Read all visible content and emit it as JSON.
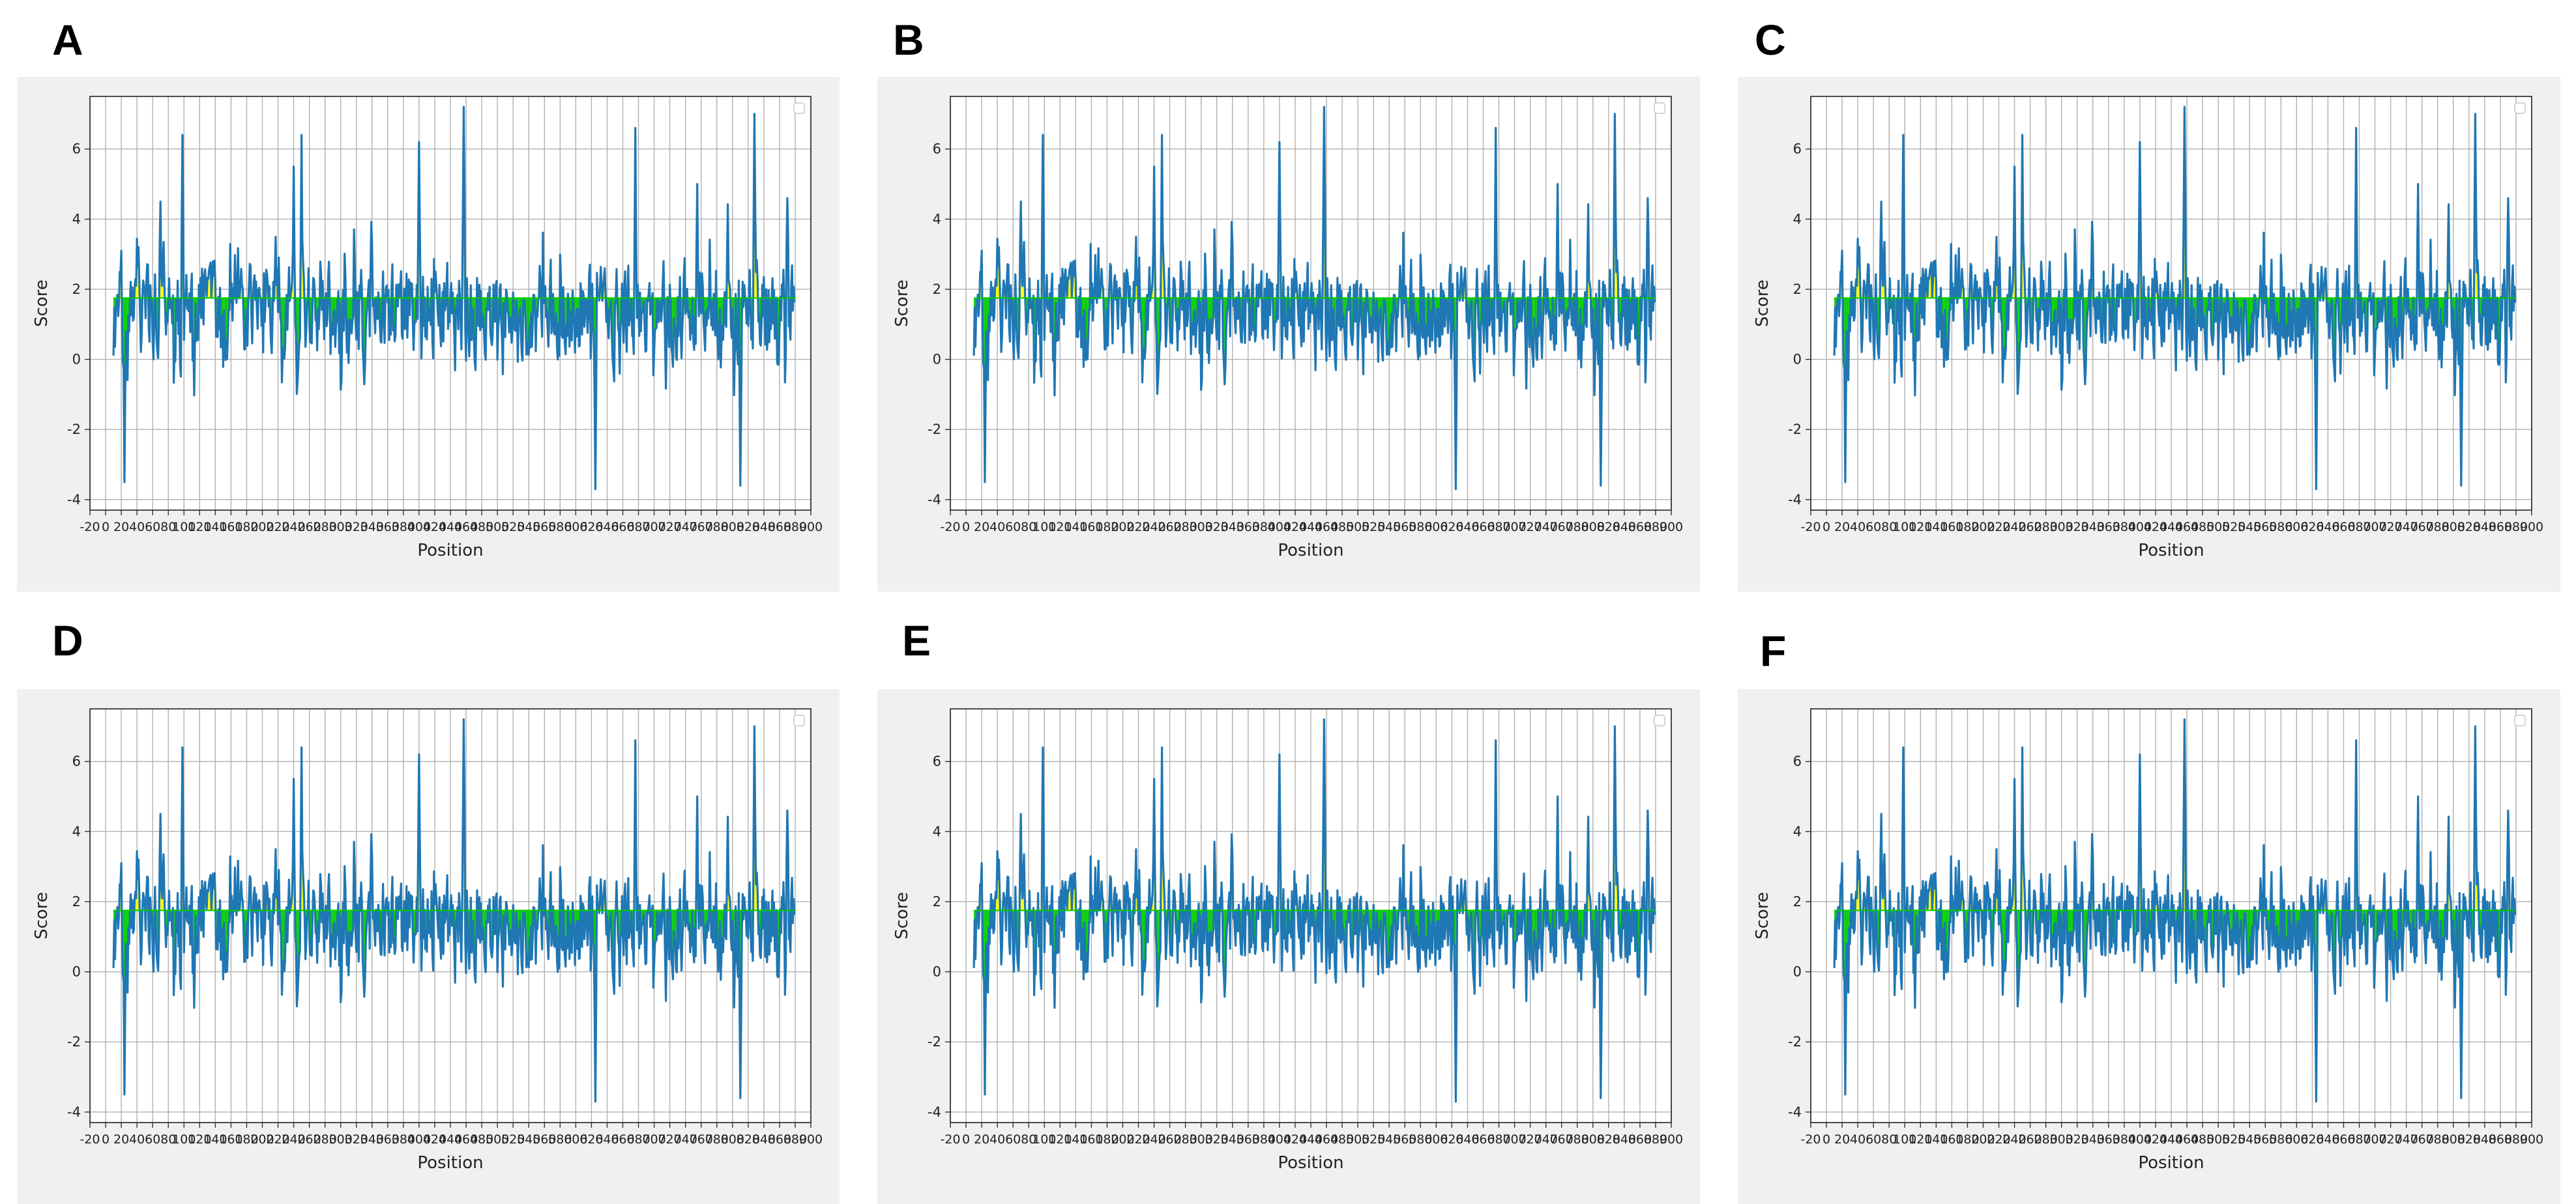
{
  "panels": [
    {
      "letter": "A"
    },
    {
      "letter": "B"
    },
    {
      "letter": "C"
    },
    {
      "letter": "D"
    },
    {
      "letter": "E"
    },
    {
      "letter": "F"
    }
  ],
  "colors": {
    "line": "#1f77b4",
    "above_fill": "#ffff00",
    "below_fill": "#00cc00",
    "grid": "#b0b0b0",
    "panel_bg": "#f0f0f0"
  },
  "chart_data": [
    {
      "type": "line",
      "panel": "A",
      "xlabel": "Position",
      "ylabel": "Score",
      "threshold": 1.75,
      "xlim": [
        -20,
        900
      ],
      "ylim": [
        -4.3,
        7.5
      ],
      "yticks": [
        -4,
        -2,
        0,
        2,
        4,
        6
      ],
      "xtick_labels": [
        "-20",
        "0",
        "20",
        "40",
        "60",
        "80",
        "100",
        "120",
        "140",
        "160",
        "180",
        "200",
        "220",
        "240",
        "260",
        "280",
        "300",
        "320",
        "340",
        "360",
        "380",
        "400",
        "420",
        "440",
        "460",
        "480",
        "500",
        "520",
        "540",
        "560",
        "580",
        "600",
        "620",
        "640",
        "660",
        "680",
        "700",
        "720",
        "740",
        "760",
        "780",
        "800",
        "820",
        "840",
        "860",
        "880",
        "900"
      ],
      "series_seed": 0,
      "series_length": 870,
      "peaks": [
        {
          "x": 14,
          "y": -3.5
        },
        {
          "x": 32,
          "y": 3.2
        },
        {
          "x": 60,
          "y": 4.5
        },
        {
          "x": 88,
          "y": 6.4
        },
        {
          "x": 230,
          "y": 5.5
        },
        {
          "x": 240,
          "y": 6.4
        },
        {
          "x": 390,
          "y": 6.2
        },
        {
          "x": 447,
          "y": 7.2
        },
        {
          "x": 615,
          "y": -3.7
        },
        {
          "x": 666,
          "y": 6.6
        },
        {
          "x": 745,
          "y": 5.0
        },
        {
          "x": 800,
          "y": -3.6
        },
        {
          "x": 818,
          "y": 7.0
        },
        {
          "x": 860,
          "y": 4.6
        }
      ]
    },
    {
      "type": "line",
      "panel": "B",
      "xlabel": "Position",
      "ylabel": "Score",
      "threshold": 1.75,
      "xlim": [
        -20,
        900
      ],
      "ylim": [
        -4.3,
        7.5
      ],
      "yticks": [
        -4,
        -2,
        0,
        2,
        4,
        6
      ],
      "xtick_labels": [
        "-20",
        "0",
        "20",
        "40",
        "60",
        "80",
        "100",
        "120",
        "140",
        "160",
        "180",
        "200",
        "220",
        "240",
        "260",
        "280",
        "300",
        "320",
        "340",
        "360",
        "380",
        "400",
        "420",
        "440",
        "460",
        "480",
        "500",
        "520",
        "540",
        "560",
        "580",
        "600",
        "620",
        "640",
        "660",
        "680",
        "700",
        "720",
        "740",
        "760",
        "780",
        "800",
        "820",
        "840",
        "860",
        "880",
        "900"
      ],
      "series_seed": 0,
      "series_length": 870,
      "peaks": [
        {
          "x": 14,
          "y": -3.5
        },
        {
          "x": 32,
          "y": 3.2
        },
        {
          "x": 60,
          "y": 4.5
        },
        {
          "x": 88,
          "y": 6.4
        },
        {
          "x": 230,
          "y": 5.5
        },
        {
          "x": 240,
          "y": 6.4
        },
        {
          "x": 390,
          "y": 6.2
        },
        {
          "x": 447,
          "y": 7.2
        },
        {
          "x": 615,
          "y": -3.7
        },
        {
          "x": 666,
          "y": 6.6
        },
        {
          "x": 745,
          "y": 5.0
        },
        {
          "x": 800,
          "y": -3.6
        },
        {
          "x": 818,
          "y": 7.0
        },
        {
          "x": 860,
          "y": 4.6
        }
      ]
    },
    {
      "type": "line",
      "panel": "C",
      "xlabel": "Position",
      "ylabel": "Score",
      "threshold": 1.75,
      "xlim": [
        -20,
        900
      ],
      "ylim": [
        -4.3,
        7.5
      ],
      "yticks": [
        -4,
        -2,
        0,
        2,
        4,
        6
      ],
      "xtick_labels": [
        "-20",
        "0",
        "20",
        "40",
        "60",
        "80",
        "100",
        "120",
        "140",
        "160",
        "180",
        "200",
        "220",
        "240",
        "260",
        "280",
        "300",
        "320",
        "340",
        "360",
        "380",
        "400",
        "420",
        "440",
        "460",
        "480",
        "500",
        "520",
        "540",
        "560",
        "580",
        "600",
        "620",
        "640",
        "660",
        "680",
        "700",
        "720",
        "740",
        "760",
        "780",
        "800",
        "820",
        "840",
        "860",
        "880",
        "900"
      ],
      "series_seed": 0,
      "series_length": 870,
      "peaks": [
        {
          "x": 14,
          "y": -3.5
        },
        {
          "x": 32,
          "y": 3.2
        },
        {
          "x": 60,
          "y": 4.5
        },
        {
          "x": 88,
          "y": 6.4
        },
        {
          "x": 230,
          "y": 5.5
        },
        {
          "x": 240,
          "y": 6.4
        },
        {
          "x": 390,
          "y": 6.2
        },
        {
          "x": 447,
          "y": 7.2
        },
        {
          "x": 615,
          "y": -3.7
        },
        {
          "x": 666,
          "y": 6.6
        },
        {
          "x": 745,
          "y": 5.0
        },
        {
          "x": 800,
          "y": -3.6
        },
        {
          "x": 818,
          "y": 7.0
        },
        {
          "x": 860,
          "y": 4.6
        }
      ]
    },
    {
      "type": "line",
      "panel": "D",
      "xlabel": "Position",
      "ylabel": "Score",
      "threshold": 1.75,
      "xlim": [
        -20,
        900
      ],
      "ylim": [
        -4.3,
        7.5
      ],
      "yticks": [
        -4,
        -2,
        0,
        2,
        4,
        6
      ],
      "xtick_labels": [
        "-20",
        "0",
        "20",
        "40",
        "60",
        "80",
        "100",
        "120",
        "140",
        "160",
        "180",
        "200",
        "220",
        "240",
        "260",
        "280",
        "300",
        "320",
        "340",
        "360",
        "380",
        "400",
        "420",
        "440",
        "460",
        "480",
        "500",
        "520",
        "540",
        "560",
        "580",
        "600",
        "620",
        "640",
        "660",
        "680",
        "700",
        "720",
        "740",
        "760",
        "780",
        "800",
        "820",
        "840",
        "860",
        "880",
        "900"
      ],
      "series_seed": 0,
      "series_length": 870,
      "peaks": [
        {
          "x": 14,
          "y": -3.5
        },
        {
          "x": 32,
          "y": 3.2
        },
        {
          "x": 60,
          "y": 4.5
        },
        {
          "x": 88,
          "y": 6.4
        },
        {
          "x": 230,
          "y": 5.5
        },
        {
          "x": 240,
          "y": 6.4
        },
        {
          "x": 390,
          "y": 6.2
        },
        {
          "x": 447,
          "y": 7.2
        },
        {
          "x": 615,
          "y": -3.7
        },
        {
          "x": 666,
          "y": 6.6
        },
        {
          "x": 745,
          "y": 5.0
        },
        {
          "x": 800,
          "y": -3.6
        },
        {
          "x": 818,
          "y": 7.0
        },
        {
          "x": 860,
          "y": 4.6
        }
      ]
    },
    {
      "type": "line",
      "panel": "E",
      "xlabel": "Position",
      "ylabel": "Score",
      "threshold": 1.75,
      "xlim": [
        -20,
        900
      ],
      "ylim": [
        -4.3,
        7.5
      ],
      "yticks": [
        -4,
        -2,
        0,
        2,
        4,
        6
      ],
      "xtick_labels": [
        "-20",
        "0",
        "20",
        "40",
        "60",
        "80",
        "100",
        "120",
        "140",
        "160",
        "180",
        "200",
        "220",
        "240",
        "260",
        "280",
        "300",
        "320",
        "340",
        "360",
        "380",
        "400",
        "420",
        "440",
        "460",
        "480",
        "500",
        "520",
        "540",
        "560",
        "580",
        "600",
        "620",
        "640",
        "660",
        "680",
        "700",
        "720",
        "740",
        "760",
        "780",
        "800",
        "820",
        "840",
        "860",
        "880",
        "900"
      ],
      "series_seed": 0,
      "series_length": 870,
      "peaks": [
        {
          "x": 14,
          "y": -3.5
        },
        {
          "x": 32,
          "y": 3.2
        },
        {
          "x": 60,
          "y": 4.5
        },
        {
          "x": 88,
          "y": 6.4
        },
        {
          "x": 230,
          "y": 5.5
        },
        {
          "x": 240,
          "y": 6.4
        },
        {
          "x": 390,
          "y": 6.2
        },
        {
          "x": 447,
          "y": 7.2
        },
        {
          "x": 615,
          "y": -3.7
        },
        {
          "x": 666,
          "y": 6.6
        },
        {
          "x": 745,
          "y": 5.0
        },
        {
          "x": 800,
          "y": -3.6
        },
        {
          "x": 818,
          "y": 7.0
        },
        {
          "x": 860,
          "y": 4.6
        }
      ]
    },
    {
      "type": "line",
      "panel": "F",
      "xlabel": "Position",
      "ylabel": "Score",
      "threshold": 1.75,
      "xlim": [
        -20,
        900
      ],
      "ylim": [
        -4.3,
        7.5
      ],
      "yticks": [
        -4,
        -2,
        0,
        2,
        4,
        6
      ],
      "xtick_labels": [
        "-20",
        "0",
        "20",
        "40",
        "60",
        "80",
        "100",
        "120",
        "140",
        "160",
        "180",
        "200",
        "220",
        "240",
        "260",
        "280",
        "300",
        "320",
        "340",
        "360",
        "380",
        "400",
        "420",
        "440",
        "460",
        "480",
        "500",
        "520",
        "540",
        "560",
        "580",
        "600",
        "620",
        "640",
        "660",
        "680",
        "700",
        "720",
        "740",
        "760",
        "780",
        "800",
        "820",
        "840",
        "860",
        "880",
        "900"
      ],
      "series_seed": 0,
      "series_length": 870,
      "peaks": [
        {
          "x": 14,
          "y": -3.5
        },
        {
          "x": 32,
          "y": 3.2
        },
        {
          "x": 60,
          "y": 4.5
        },
        {
          "x": 88,
          "y": 6.4
        },
        {
          "x": 230,
          "y": 5.5
        },
        {
          "x": 240,
          "y": 6.4
        },
        {
          "x": 390,
          "y": 6.2
        },
        {
          "x": 447,
          "y": 7.2
        },
        {
          "x": 615,
          "y": -3.7
        },
        {
          "x": 666,
          "y": 6.6
        },
        {
          "x": 745,
          "y": 5.0
        },
        {
          "x": 800,
          "y": -3.6
        },
        {
          "x": 818,
          "y": 7.0
        },
        {
          "x": 860,
          "y": 4.6
        }
      ]
    }
  ]
}
